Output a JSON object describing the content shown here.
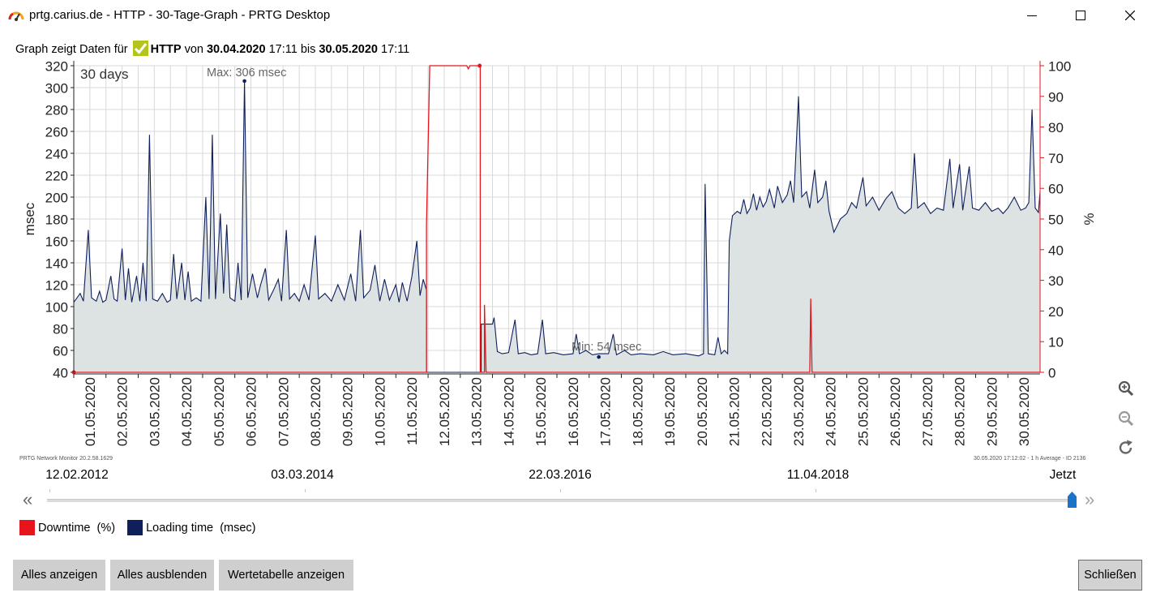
{
  "window": {
    "title": "prtg.carius.de - HTTP - 30-Tage-Graph - PRTG Desktop"
  },
  "subheader": {
    "prefix": "Graph zeigt Daten für",
    "sensor": "HTTP",
    "from_word": "von",
    "from_date": "30.04.2020",
    "from_time": "17:11",
    "to_word": "bis",
    "to_date": "30.05.2020",
    "to_time": "17:11"
  },
  "chart_data": {
    "type": "area",
    "period_label": "30 days",
    "ylabel_left": "msec",
    "ylabel_right": "%",
    "ylim_left": [
      40,
      320
    ],
    "ylim_right": [
      0,
      100
    ],
    "yticks_left": [
      40,
      60,
      80,
      100,
      120,
      140,
      160,
      180,
      200,
      220,
      240,
      260,
      280,
      300,
      320
    ],
    "yticks_right": [
      0,
      10,
      20,
      30,
      40,
      50,
      60,
      70,
      80,
      90,
      100
    ],
    "x_range_days": [
      0,
      30
    ],
    "x_tick_labels": [
      "01.05.2020",
      "02.05.2020",
      "03.05.2020",
      "04.05.2020",
      "05.05.2020",
      "06.05.2020",
      "07.05.2020",
      "08.05.2020",
      "09.05.2020",
      "10.05.2020",
      "11.05.2020",
      "12.05.2020",
      "13.05.2020",
      "14.05.2020",
      "15.05.2020",
      "16.05.2020",
      "17.05.2020",
      "18.05.2020",
      "19.05.2020",
      "20.05.2020",
      "21.05.2020",
      "22.05.2020",
      "23.05.2020",
      "24.05.2020",
      "25.05.2020",
      "26.05.2020",
      "27.05.2020",
      "28.05.2020",
      "29.05.2020",
      "30.05.2020"
    ],
    "annotations": {
      "max_label": "Max: 306 msec",
      "min_label": "Min: 54 msec"
    },
    "series": [
      {
        "name": "Downtime",
        "unit": "%",
        "axis": "right",
        "color": "#e8141c",
        "points": [
          [
            0,
            0
          ],
          [
            10.95,
            0
          ],
          [
            10.95,
            48
          ],
          [
            11.05,
            100
          ],
          [
            12.2,
            100
          ],
          [
            12.25,
            99
          ],
          [
            12.3,
            100
          ],
          [
            12.62,
            100
          ],
          [
            12.62,
            0
          ],
          [
            12.75,
            0
          ],
          [
            12.75,
            22
          ],
          [
            12.8,
            0
          ],
          [
            22.85,
            0
          ],
          [
            22.88,
            24
          ],
          [
            22.92,
            0
          ],
          [
            30,
            0
          ]
        ]
      },
      {
        "name": "Loading time",
        "unit": "msec",
        "axis": "left",
        "color": "#0f1f5c",
        "fill": "#dde3e3",
        "points": [
          [
            0,
            104
          ],
          [
            0.1,
            108
          ],
          [
            0.2,
            112
          ],
          [
            0.3,
            105
          ],
          [
            0.45,
            170
          ],
          [
            0.55,
            108
          ],
          [
            0.7,
            105
          ],
          [
            0.8,
            114
          ],
          [
            0.9,
            104
          ],
          [
            1.0,
            106
          ],
          [
            1.15,
            128
          ],
          [
            1.25,
            107
          ],
          [
            1.35,
            105
          ],
          [
            1.5,
            153
          ],
          [
            1.6,
            106
          ],
          [
            1.7,
            135
          ],
          [
            1.8,
            104
          ],
          [
            1.95,
            128
          ],
          [
            2.05,
            105
          ],
          [
            2.15,
            140
          ],
          [
            2.25,
            105
          ],
          [
            2.35,
            257
          ],
          [
            2.45,
            107
          ],
          [
            2.6,
            105
          ],
          [
            2.75,
            112
          ],
          [
            2.9,
            104
          ],
          [
            3.0,
            106
          ],
          [
            3.1,
            148
          ],
          [
            3.2,
            107
          ],
          [
            3.35,
            140
          ],
          [
            3.45,
            106
          ],
          [
            3.55,
            132
          ],
          [
            3.65,
            105
          ],
          [
            3.8,
            108
          ],
          [
            3.95,
            105
          ],
          [
            4.1,
            200
          ],
          [
            4.2,
            107
          ],
          [
            4.3,
            257
          ],
          [
            4.4,
            107
          ],
          [
            4.55,
            185
          ],
          [
            4.65,
            112
          ],
          [
            4.75,
            175
          ],
          [
            4.85,
            108
          ],
          [
            5.0,
            105
          ],
          [
            5.1,
            140
          ],
          [
            5.2,
            106
          ],
          [
            5.3,
            306
          ],
          [
            5.4,
            108
          ],
          [
            5.55,
            130
          ],
          [
            5.7,
            108
          ],
          [
            5.8,
            120
          ],
          [
            5.95,
            135
          ],
          [
            6.05,
            106
          ],
          [
            6.2,
            115
          ],
          [
            6.35,
            125
          ],
          [
            6.45,
            105
          ],
          [
            6.6,
            170
          ],
          [
            6.7,
            107
          ],
          [
            6.85,
            112
          ],
          [
            7.0,
            105
          ],
          [
            7.15,
            120
          ],
          [
            7.3,
            106
          ],
          [
            7.5,
            165
          ],
          [
            7.6,
            107
          ],
          [
            7.8,
            112
          ],
          [
            8.0,
            105
          ],
          [
            8.2,
            120
          ],
          [
            8.4,
            106
          ],
          [
            8.6,
            130
          ],
          [
            8.75,
            105
          ],
          [
            8.9,
            170
          ],
          [
            9.0,
            108
          ],
          [
            9.2,
            115
          ],
          [
            9.35,
            138
          ],
          [
            9.5,
            105
          ],
          [
            9.65,
            125
          ],
          [
            9.8,
            106
          ],
          [
            10.0,
            120
          ],
          [
            10.1,
            104
          ],
          [
            10.2,
            122
          ],
          [
            10.35,
            105
          ],
          [
            10.5,
            128
          ],
          [
            10.65,
            160
          ],
          [
            10.75,
            110
          ],
          [
            10.85,
            125
          ],
          [
            10.95,
            115
          ],
          [
            10.95,
            40
          ],
          [
            12.65,
            40
          ],
          [
            12.65,
            84
          ],
          [
            13.0,
            84
          ],
          [
            13.05,
            90
          ],
          [
            13.15,
            59
          ],
          [
            13.3,
            57
          ],
          [
            13.5,
            58
          ],
          [
            13.7,
            88
          ],
          [
            13.8,
            57
          ],
          [
            14.0,
            58
          ],
          [
            14.2,
            56
          ],
          [
            14.4,
            57
          ],
          [
            14.55,
            88
          ],
          [
            14.65,
            57
          ],
          [
            14.9,
            58
          ],
          [
            15.2,
            56
          ],
          [
            15.5,
            57
          ],
          [
            15.6,
            75
          ],
          [
            15.7,
            57
          ],
          [
            15.9,
            60
          ],
          [
            16.1,
            56
          ],
          [
            16.3,
            57
          ],
          [
            16.6,
            57
          ],
          [
            16.75,
            75
          ],
          [
            16.85,
            56
          ],
          [
            17.1,
            60
          ],
          [
            17.3,
            56
          ],
          [
            17.6,
            57
          ],
          [
            18.0,
            56
          ],
          [
            18.3,
            59
          ],
          [
            18.6,
            56
          ],
          [
            19.0,
            57
          ],
          [
            19.4,
            55
          ],
          [
            19.55,
            57
          ],
          [
            19.6,
            212
          ],
          [
            19.7,
            57
          ],
          [
            19.9,
            56
          ],
          [
            20.0,
            72
          ],
          [
            20.1,
            57
          ],
          [
            20.2,
            60
          ],
          [
            20.3,
            57
          ],
          [
            20.35,
            160
          ],
          [
            20.45,
            183
          ],
          [
            20.6,
            187
          ],
          [
            20.7,
            185
          ],
          [
            20.8,
            198
          ],
          [
            20.9,
            185
          ],
          [
            21.0,
            190
          ],
          [
            21.1,
            203
          ],
          [
            21.2,
            188
          ],
          [
            21.3,
            200
          ],
          [
            21.4,
            191
          ],
          [
            21.5,
            196
          ],
          [
            21.6,
            207
          ],
          [
            21.75,
            190
          ],
          [
            21.85,
            210
          ],
          [
            22.0,
            195
          ],
          [
            22.15,
            202
          ],
          [
            22.25,
            215
          ],
          [
            22.35,
            195
          ],
          [
            22.5,
            292
          ],
          [
            22.6,
            200
          ],
          [
            22.75,
            205
          ],
          [
            22.85,
            190
          ],
          [
            23.0,
            225
          ],
          [
            23.1,
            195
          ],
          [
            23.25,
            200
          ],
          [
            23.35,
            215
          ],
          [
            23.45,
            187
          ],
          [
            23.6,
            168
          ],
          [
            23.8,
            180
          ],
          [
            24.0,
            185
          ],
          [
            24.15,
            195
          ],
          [
            24.3,
            190
          ],
          [
            24.5,
            218
          ],
          [
            24.6,
            192
          ],
          [
            24.8,
            200
          ],
          [
            25.0,
            188
          ],
          [
            25.2,
            198
          ],
          [
            25.4,
            205
          ],
          [
            25.6,
            190
          ],
          [
            25.8,
            185
          ],
          [
            26.0,
            190
          ],
          [
            26.1,
            240
          ],
          [
            26.2,
            190
          ],
          [
            26.4,
            195
          ],
          [
            26.6,
            185
          ],
          [
            26.8,
            190
          ],
          [
            27.0,
            188
          ],
          [
            27.2,
            235
          ],
          [
            27.3,
            190
          ],
          [
            27.5,
            230
          ],
          [
            27.6,
            188
          ],
          [
            27.8,
            228
          ],
          [
            27.9,
            190
          ],
          [
            28.1,
            188
          ],
          [
            28.3,
            195
          ],
          [
            28.5,
            187
          ],
          [
            28.7,
            190
          ],
          [
            28.85,
            185
          ],
          [
            29.0,
            190
          ],
          [
            29.2,
            200
          ],
          [
            29.4,
            188
          ],
          [
            29.55,
            190
          ],
          [
            29.65,
            195
          ],
          [
            29.75,
            280
          ],
          [
            29.85,
            190
          ],
          [
            29.95,
            186
          ],
          [
            30,
            205
          ]
        ]
      }
    ]
  },
  "footer_left": "PRTG Network Monitor 20.2.58.1629",
  "footer_right": "30.05.2020 17:12:02 - 1 h Average - ID 2136",
  "timeline": {
    "labels": [
      "12.02.2012",
      "03.03.2014",
      "22.03.2016",
      "11.04.2018",
      "Jetzt"
    ],
    "position": 1.0
  },
  "legend": [
    {
      "label": "Downtime",
      "unit": "(%)",
      "color": "#e8141c"
    },
    {
      "label": "Loading time",
      "unit": "(msec)",
      "color": "#0f1f5c"
    }
  ],
  "buttons": {
    "show_all": "Alles anzeigen",
    "hide_all": "Alles ausblenden",
    "value_table": "Wertetabelle anzeigen",
    "close": "Schließen"
  },
  "icons": [
    "gauge-app-icon",
    "minimize-icon",
    "maximize-icon",
    "close-icon",
    "checkmark-icon",
    "zoom-in-icon",
    "zoom-out-icon",
    "reset-icon",
    "rewind-icon",
    "fast-forward-icon"
  ]
}
